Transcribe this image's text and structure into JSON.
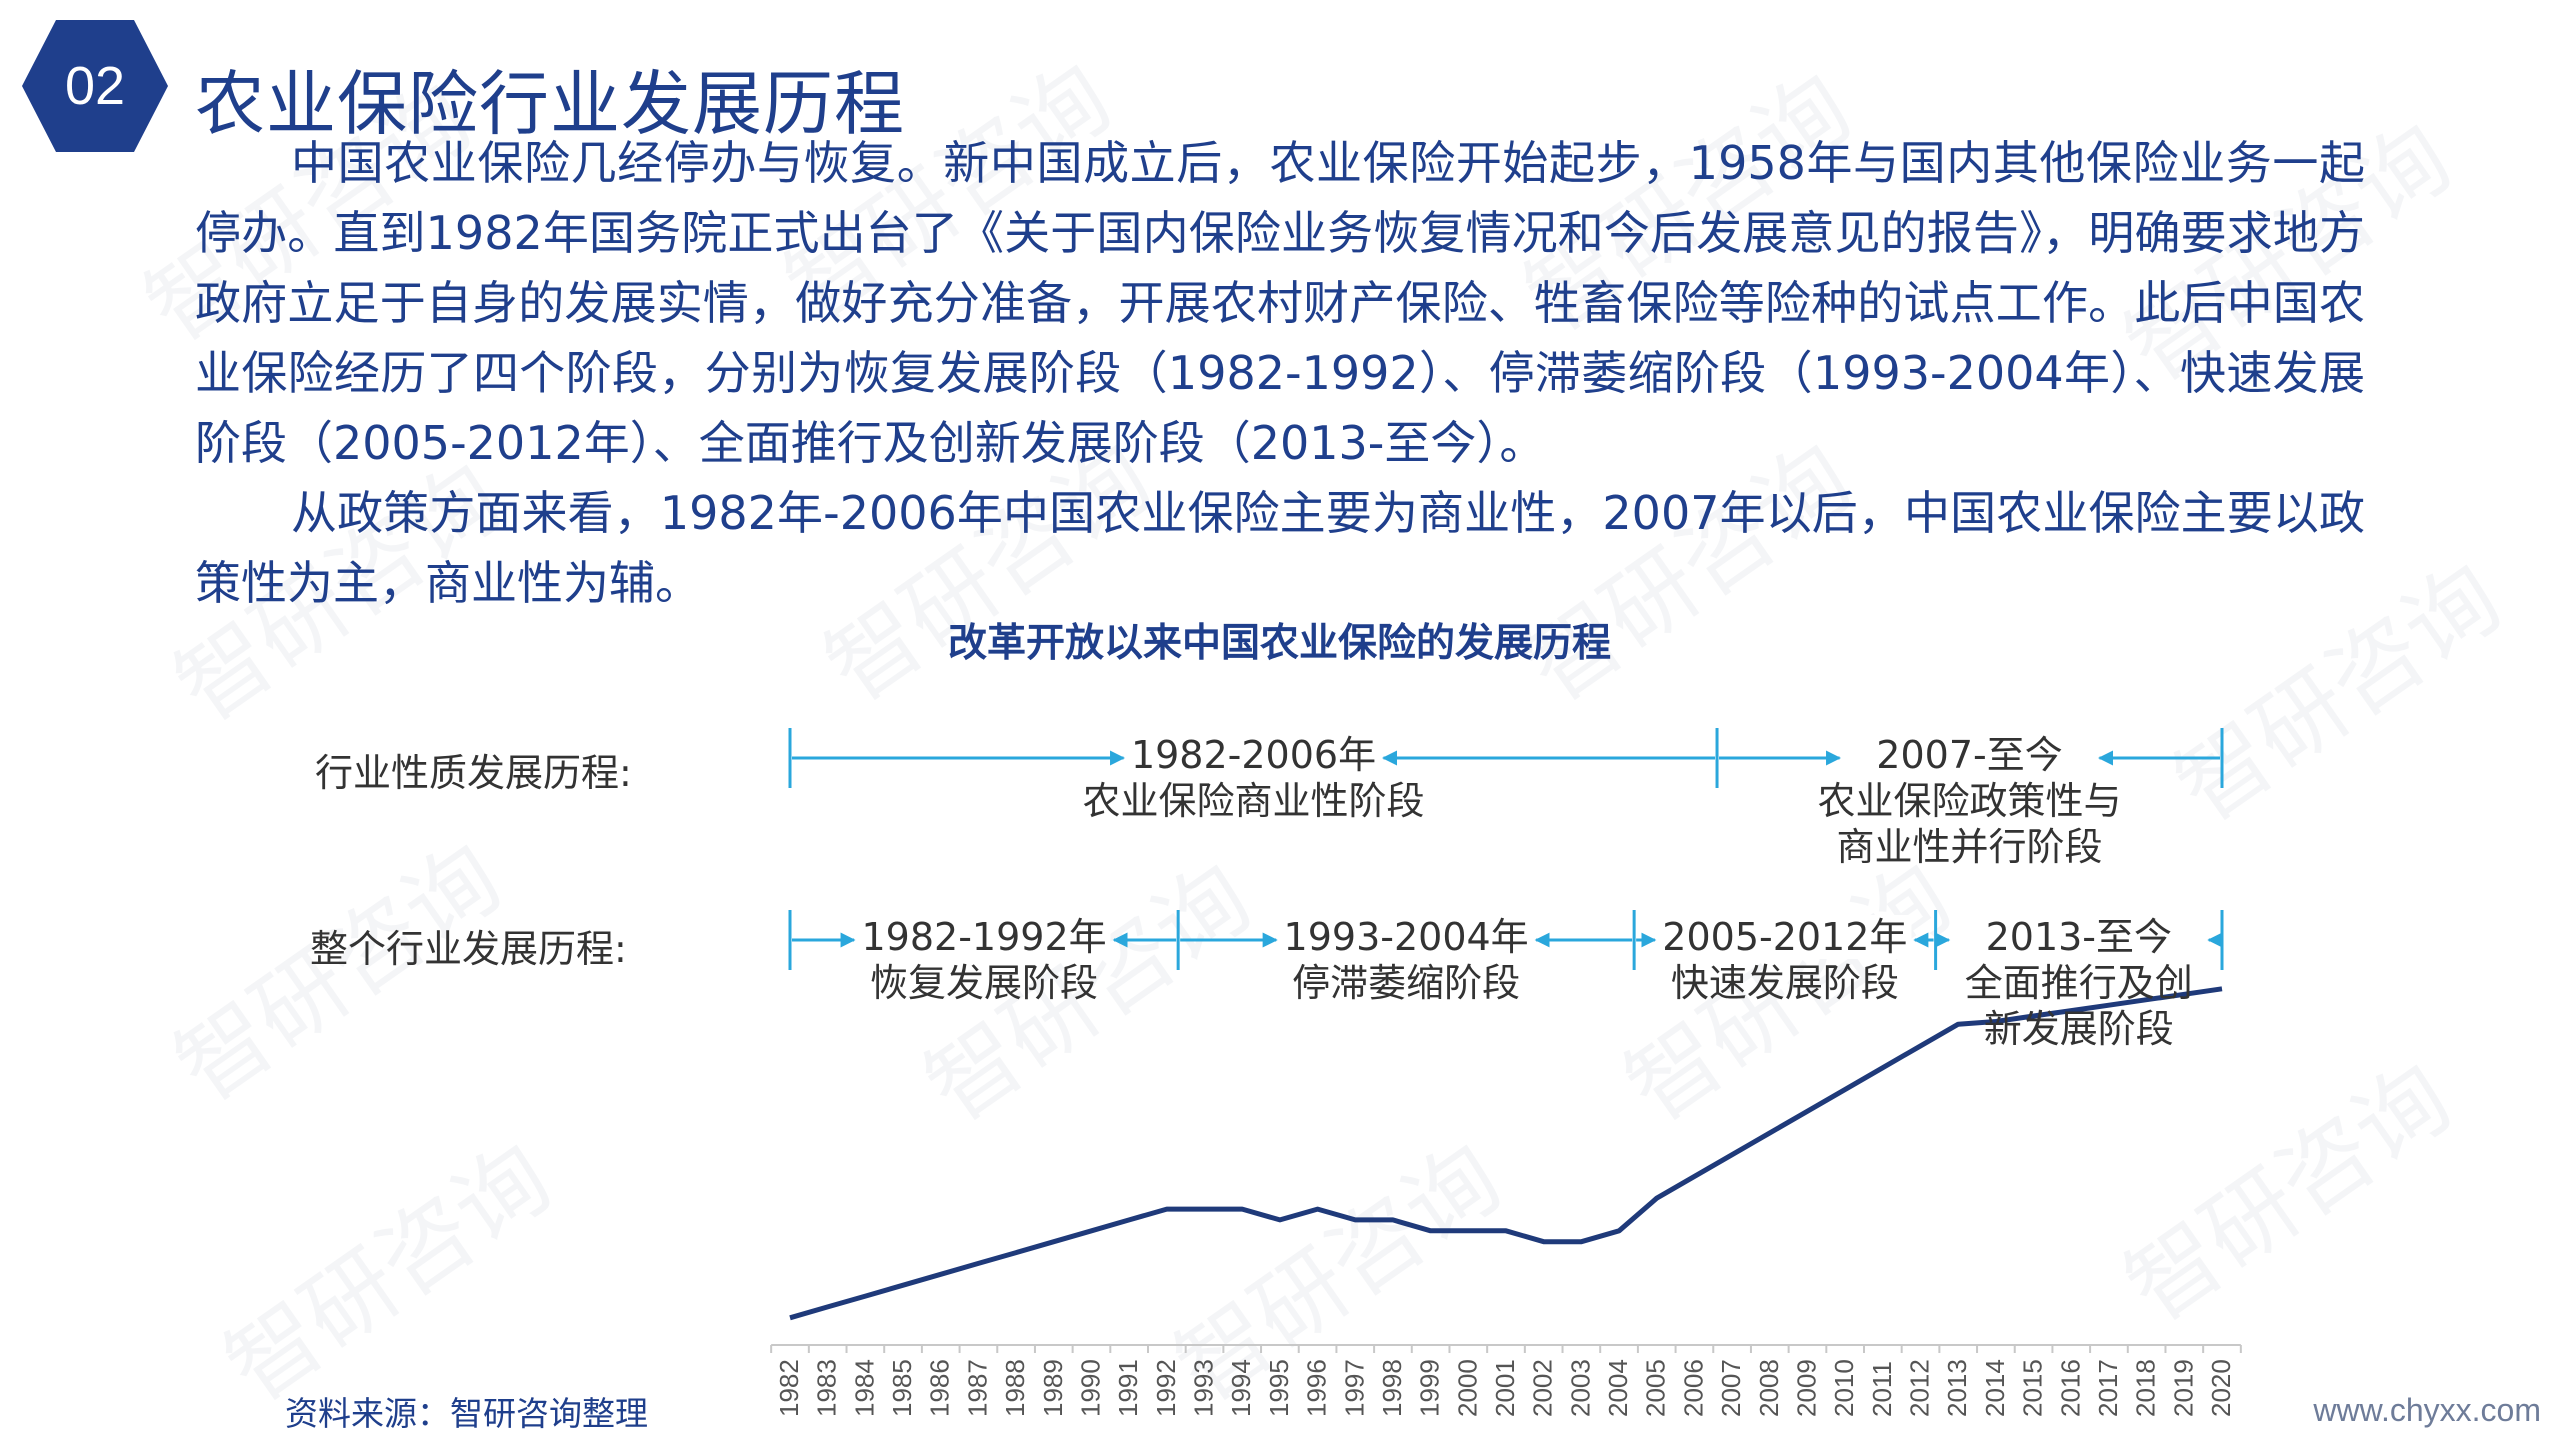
{
  "header": {
    "badge": "02",
    "title": "农业保险行业发展历程"
  },
  "body": {
    "paragraph1": "中国农业保险几经停办与恢复。新中国成立后，农业保险开始起步，1958年与国内其他保险业务一起停办。直到1982年国务院正式出台了《关于国内保险业务恢复情况和今后发展意见的报告》，明确要求地方政府立足于自身的发展实情，做好充分准备，开展农村财产保险、牲畜保险等险种的试点工作。此后中国农业保险经历了四个阶段，分别为恢复发展阶段（1982-1992）、停滞萎缩阶段（1993-2004年）、快速发展阶段（2005-2012年）、全面推行及创新发展阶段（2013-至今）。",
    "paragraph2": "从政策方面来看，1982年-2006年中国农业保险主要为商业性，2007年以后，中国农业保险主要以政策性为主，商业性为辅。"
  },
  "chart_data": {
    "type": "line",
    "title": "改革开放以来中国农业保险的发展历程",
    "row1_label": "行业性质发展历程:",
    "row2_label": "整个行业发展历程:",
    "row1_stages": [
      {
        "years": "1982-2006年",
        "name_lines": [
          "农业保险商业性阶段"
        ],
        "start": 1982,
        "end": 2006.6
      },
      {
        "years": "2007-至今",
        "name_lines": [
          "农业保险政策性与",
          "商业性并行阶段"
        ],
        "start": 2006.6,
        "end": 2020
      }
    ],
    "row2_stages": [
      {
        "years": "1982-1992年",
        "name_lines": [
          "恢复发展阶段"
        ],
        "start": 1982,
        "end": 1992.3
      },
      {
        "years": "1993-2004年",
        "name_lines": [
          "停滞萎缩阶段"
        ],
        "start": 1992.3,
        "end": 2004.4
      },
      {
        "years": "2005-2012年",
        "name_lines": [
          "快速发展阶段"
        ],
        "start": 2004.4,
        "end": 2012.4
      },
      {
        "years": "2013-至今",
        "name_lines": [
          "全面推行及创",
          "新发展阶段"
        ],
        "start": 2012.4,
        "end": 2020
      }
    ],
    "x": [
      1982,
      1983,
      1984,
      1985,
      1986,
      1987,
      1988,
      1989,
      1990,
      1991,
      1992,
      1993,
      1994,
      1995,
      1996,
      1997,
      1998,
      1999,
      2000,
      2001,
      2002,
      2003,
      2004,
      2005,
      2006,
      2007,
      2008,
      2009,
      2010,
      2011,
      2012,
      2013,
      2014,
      2015,
      2016,
      2017,
      2018,
      2019,
      2020
    ],
    "values": [
      10,
      14,
      18,
      22,
      26,
      30,
      34,
      38,
      42,
      46,
      50,
      50,
      50,
      46,
      50,
      46,
      46,
      42,
      42,
      42,
      38,
      38,
      42,
      54,
      62,
      70,
      78,
      86,
      94,
      102,
      110,
      118,
      119,
      121,
      123,
      125,
      127,
      129,
      131
    ],
    "ylim": [
      0,
      160
    ],
    "line_color": "#1f3a7a",
    "arrow_color": "#2aa7dc",
    "accent": "#1f3f8c"
  },
  "footer": {
    "source": "资料来源：智研咨询整理",
    "website": "www.chyxx.com"
  },
  "watermark": "智研咨询"
}
